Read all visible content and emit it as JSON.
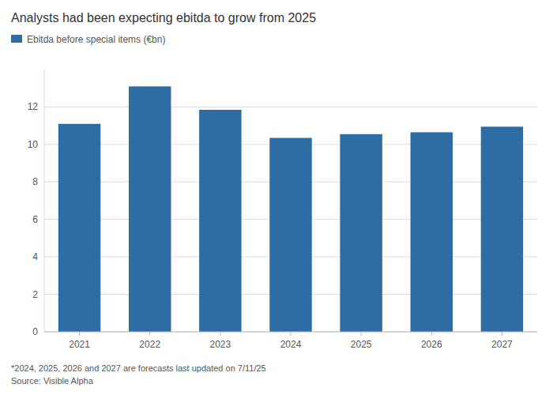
{
  "chart_data": {
    "type": "bar",
    "title": "Analysts had been expecting ebitda to grow from 2025",
    "categories": [
      "2021",
      "2022",
      "2023",
      "2024",
      "2025",
      "2026",
      "2027"
    ],
    "series": [
      {
        "name": "Ebitda before special items (€bn)",
        "color": "#2E6DA4",
        "values": [
          11.1,
          13.1,
          11.85,
          10.35,
          10.55,
          10.65,
          10.95
        ]
      }
    ],
    "ylim": [
      0,
      14
    ],
    "yticks": [
      0,
      2,
      4,
      6,
      8,
      10,
      12
    ],
    "grid": true,
    "legend": "upper left",
    "annotations": [
      "*2024, 2025, 2026 and 2027 are forecasts last updated on 7/11/25",
      "Source: Visible Alpha"
    ]
  }
}
